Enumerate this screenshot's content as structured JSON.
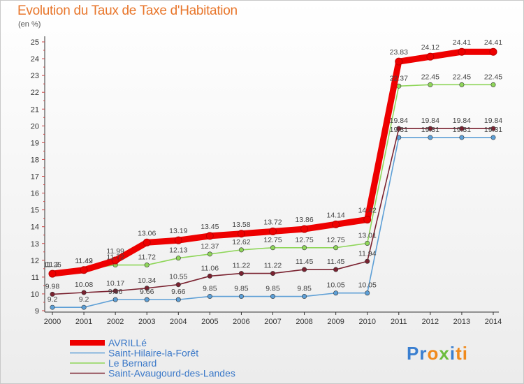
{
  "title": "Evolution du Taux de Taxe d'Habitation",
  "unit": "(en %)",
  "logo": {
    "letters": [
      "P",
      "r",
      "o",
      "x",
      "i",
      "t",
      "i"
    ],
    "colors": [
      "#3a7fd0",
      "#3a7fd0",
      "#f08a1c",
      "#6cbd3d",
      "#3a7fd0",
      "#f08a1c",
      "#f08a1c"
    ]
  },
  "chart_data": {
    "type": "line",
    "x": [
      "2000",
      "2001",
      "2002",
      "2003",
      "2004",
      "2005",
      "2006",
      "2007",
      "2008",
      "2009",
      "2010",
      "2011",
      "2012",
      "2013",
      "2014"
    ],
    "ylim": [
      9,
      25
    ],
    "yticks": [
      9,
      10,
      11,
      12,
      13,
      14,
      15,
      16,
      17,
      18,
      19,
      20,
      21,
      22,
      23,
      24,
      25
    ],
    "grid": false,
    "legend_position": "bottom-left",
    "series": [
      {
        "name": "Saint-Hilaire-la-Forêt",
        "color": "#5d9fd6",
        "values": [
          9.2,
          9.2,
          9.66,
          9.66,
          9.66,
          9.85,
          9.85,
          9.85,
          9.85,
          10.05,
          10.05,
          19.31,
          19.31,
          19.31,
          19.31
        ]
      },
      {
        "name": "Saint-Avaugourd-des-Landes",
        "color": "#7a2230",
        "values": [
          9.98,
          10.08,
          10.17,
          10.34,
          10.55,
          11.06,
          11.22,
          11.22,
          11.45,
          11.45,
          11.94,
          19.84,
          19.84,
          19.84,
          19.84
        ]
      },
      {
        "name": "Le Bernard",
        "color": "#8fd65a",
        "values": [
          11.26,
          11.49,
          11.72,
          11.72,
          12.13,
          12.37,
          12.62,
          12.75,
          12.75,
          12.75,
          13.01,
          22.37,
          22.45,
          22.45,
          22.45
        ]
      },
      {
        "name": "AVRILLé",
        "color": "#ee0000",
        "values": [
          11.2,
          11.42,
          11.99,
          13.06,
          13.19,
          13.45,
          13.58,
          13.72,
          13.86,
          14.14,
          14.42,
          23.83,
          24.12,
          24.41,
          24.41
        ]
      }
    ]
  }
}
